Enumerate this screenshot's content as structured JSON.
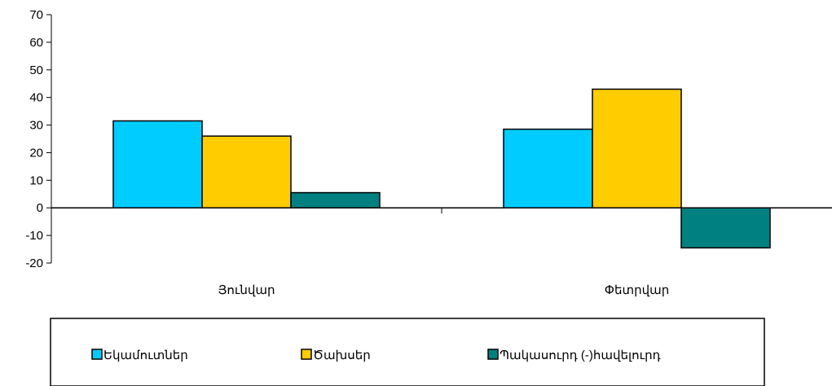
{
  "chart_data": {
    "type": "bar",
    "categories": [
      "Յունվար",
      "Փետրվար"
    ],
    "series": [
      {
        "name": "Եկամուտներ",
        "values": [
          31.5,
          28.5
        ],
        "color": "#00CCFF"
      },
      {
        "name": "Ծախսեր",
        "values": [
          26,
          43
        ],
        "color": "#FFCC00"
      },
      {
        "name": "Պակասուրդ (-)հավելուրդ",
        "values": [
          5.5,
          -14.5
        ],
        "color": "#008080"
      }
    ],
    "yticks": [
      "70",
      "60",
      "50",
      "40",
      "30",
      "20",
      "10",
      "0",
      "-10",
      "-20"
    ],
    "ylim": [
      -20,
      70
    ],
    "grid": false,
    "legend": "bottom"
  }
}
